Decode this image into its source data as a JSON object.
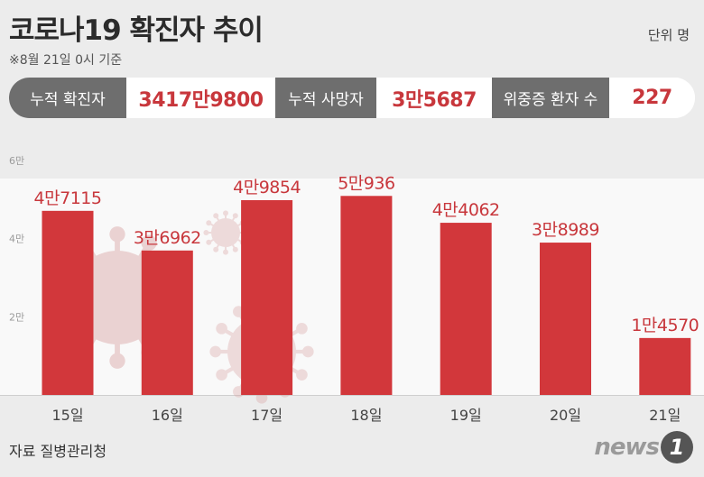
{
  "header": {
    "title": "코로나19 확진자 추이",
    "unit": "단위 명",
    "basis": "※8월 21일 0시 기준"
  },
  "stats": [
    {
      "label": "누적 확진자",
      "value": "3417만9800"
    },
    {
      "label": "누적 사망자",
      "value": "3만5687"
    },
    {
      "label": "위중증 환자 수",
      "value": "227"
    }
  ],
  "footer": {
    "source": "자료 질병관리청",
    "logo": "news1"
  },
  "colors": {
    "bar": "#d2373b",
    "label": "#c8373c",
    "virus": "#d9a3a3"
  },
  "chart_data": {
    "type": "bar",
    "categories": [
      "15일",
      "16일",
      "17일",
      "18일",
      "19일",
      "20일",
      "21일"
    ],
    "values": [
      47115,
      36962,
      49854,
      50936,
      44062,
      38989,
      14570
    ],
    "value_labels": [
      "4만7115",
      "3만6962",
      "4만9854",
      "5만936",
      "4만4062",
      "3만8989",
      "1만4570"
    ],
    "yticks": [
      {
        "value": 20000,
        "label": "2만"
      },
      {
        "value": 40000,
        "label": "4만"
      },
      {
        "value": 60000,
        "label": "6만"
      }
    ],
    "ylim": [
      0,
      60000
    ]
  }
}
